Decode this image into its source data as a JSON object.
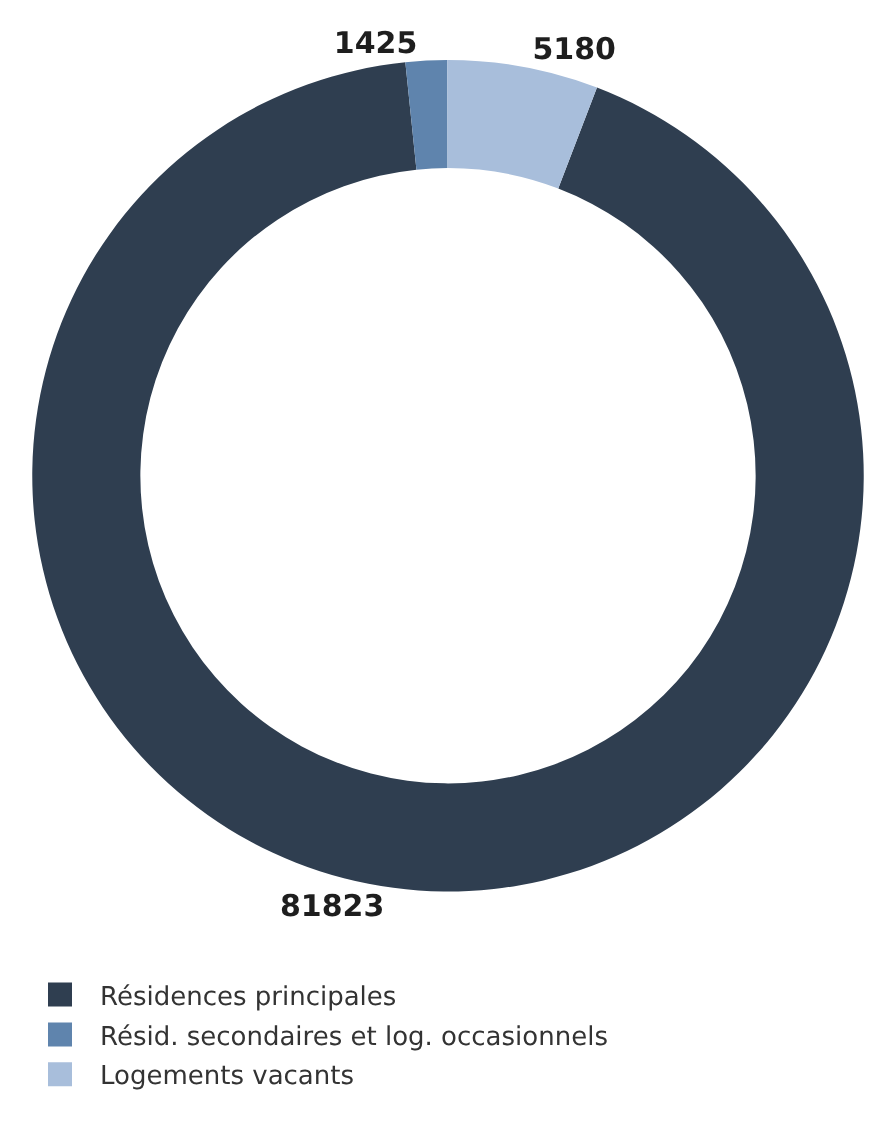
{
  "chart_data": {
    "type": "donut",
    "categories": [
      "Résidences principales",
      "Résid. secondaires et log. occasionnels",
      "Logements vacants"
    ],
    "values": [
      81823,
      1425,
      5180
    ],
    "colors": [
      "#2f3e50",
      "#5f84ad",
      "#a8bedb"
    ],
    "data_labels": true,
    "legend": "bottom"
  }
}
